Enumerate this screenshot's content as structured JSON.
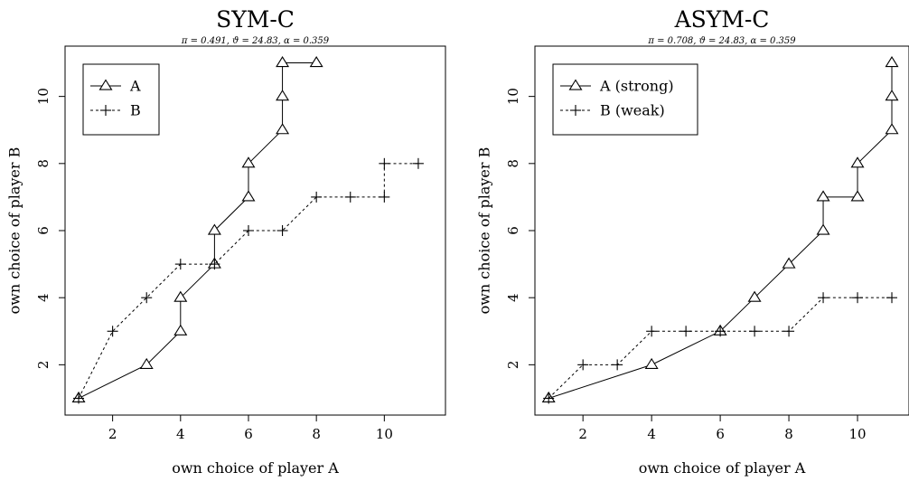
{
  "chart_data": [
    {
      "type": "line",
      "title": "SYM-C",
      "subtitle": "π = 0.491, ϑ = 24.83, α = 0.359",
      "xlabel": "own choice of player A",
      "ylabel": "own choice of player B",
      "xlim": [
        0.6,
        11.8
      ],
      "ylim": [
        0.5,
        11.5
      ],
      "xticks": [
        2,
        4,
        6,
        8,
        10
      ],
      "yticks": [
        2,
        4,
        6,
        8,
        10
      ],
      "grid": false,
      "legend_position": "top-left",
      "series": [
        {
          "name": "A",
          "marker": "triangle",
          "linestyle": "solid",
          "x": [
            1,
            3,
            4,
            4,
            5,
            5,
            6,
            6,
            7,
            7,
            7,
            8
          ],
          "y": [
            1,
            2,
            3,
            4,
            5,
            6,
            7,
            8,
            9,
            10,
            11,
            11
          ]
        },
        {
          "name": "B",
          "marker": "plus",
          "linestyle": "dashed",
          "x": [
            1,
            2,
            3,
            4,
            5,
            6,
            7,
            8,
            9,
            10,
            10,
            11
          ],
          "y": [
            1,
            3,
            4,
            5,
            5,
            6,
            6,
            7,
            7,
            7,
            8,
            8
          ]
        }
      ]
    },
    {
      "type": "line",
      "title": "ASYM-C",
      "subtitle": "π = 0.708, ϑ = 24.83, α = 0.359",
      "xlabel": "own choice of player A",
      "ylabel": "own choice of player B",
      "xlim": [
        0.6,
        11.5
      ],
      "ylim": [
        0.5,
        11.5
      ],
      "xticks": [
        2,
        4,
        6,
        8,
        10
      ],
      "yticks": [
        2,
        4,
        6,
        8,
        10
      ],
      "grid": false,
      "legend_position": "top-left",
      "series": [
        {
          "name": "A (strong)",
          "marker": "triangle",
          "linestyle": "solid",
          "x": [
            1,
            4,
            6,
            7,
            8,
            9,
            9,
            10,
            10,
            11,
            11,
            11
          ],
          "y": [
            1,
            2,
            3,
            4,
            5,
            6,
            7,
            7,
            8,
            9,
            10,
            11
          ]
        },
        {
          "name": "B (weak)",
          "marker": "plus",
          "linestyle": "dashed",
          "x": [
            1,
            2,
            3,
            4,
            5,
            6,
            7,
            8,
            9,
            10,
            11
          ],
          "y": [
            1,
            2,
            2,
            3,
            3,
            3,
            3,
            3,
            4,
            4,
            4
          ]
        }
      ]
    }
  ]
}
